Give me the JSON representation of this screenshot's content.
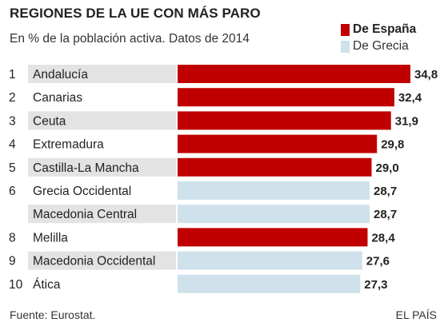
{
  "header": {
    "title": "REGIONES DE LA UE CON MÁS PARO",
    "subtitle": "En % de la población activa. Datos de 2014"
  },
  "legend": [
    {
      "label": "De España",
      "color": "#c00000"
    },
    {
      "label": "De Grecia",
      "color": "#cfe1ea"
    }
  ],
  "footer": {
    "source": "Fuente: Eurostat.",
    "credit": "EL PAÍS"
  },
  "colors": {
    "spain": "#c00000",
    "greece": "#cfe1ea",
    "label_shade": "#e3e3e3"
  },
  "chart_data": {
    "type": "bar",
    "orientation": "horizontal",
    "title": "REGIONES DE LA UE CON MÁS PARO",
    "subtitle": "En % de la población activa. Datos de 2014",
    "xlim": [
      0,
      34.8
    ],
    "grid": false,
    "legend_position": "top-right",
    "rows": [
      {
        "rank": "1",
        "region": "Andalucía",
        "value": 34.8,
        "value_label": "34,8",
        "country": "spain"
      },
      {
        "rank": "2",
        "region": "Canarias",
        "value": 32.4,
        "value_label": "32,4",
        "country": "spain"
      },
      {
        "rank": "3",
        "region": "Ceuta",
        "value": 31.9,
        "value_label": "31,9",
        "country": "spain"
      },
      {
        "rank": "4",
        "region": "Extremadura",
        "value": 29.8,
        "value_label": "29,8",
        "country": "spain"
      },
      {
        "rank": "5",
        "region": "Castilla-La Mancha",
        "value": 29.0,
        "value_label": "29,0",
        "country": "spain"
      },
      {
        "rank": "6",
        "region": "Grecia Occidental",
        "value": 28.7,
        "value_label": "28,7",
        "country": "greece"
      },
      {
        "rank": "",
        "region": "Macedonia Central",
        "value": 28.7,
        "value_label": "28,7",
        "country": "greece"
      },
      {
        "rank": "8",
        "region": "Melilla",
        "value": 28.4,
        "value_label": "28,4",
        "country": "spain"
      },
      {
        "rank": "9",
        "region": "Macedonia Occidental",
        "value": 27.6,
        "value_label": "27,6",
        "country": "greece"
      },
      {
        "rank": "10",
        "region": "Ática",
        "value": 27.3,
        "value_label": "27,3",
        "country": "greece"
      }
    ]
  }
}
